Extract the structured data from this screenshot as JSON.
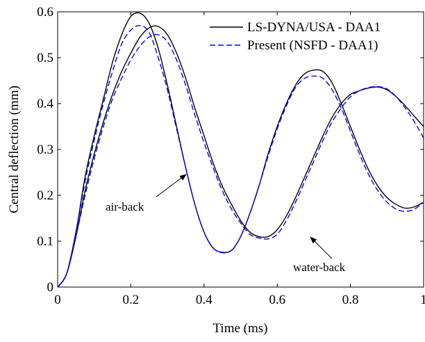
{
  "chart_data": {
    "type": "line",
    "xlabel": "Time (ms)",
    "ylabel": "Central deflection (mm)",
    "xlim": [
      0,
      1
    ],
    "xticks": [
      0,
      0.2,
      0.4,
      0.6,
      0.8,
      1
    ],
    "ylim": [
      0,
      0.6
    ],
    "yticks": [
      0,
      0.1,
      0.2,
      0.3,
      0.4,
      0.5,
      0.6
    ],
    "legend": "top-right",
    "annotations": [
      "air-back",
      "water-back"
    ],
    "x": [
      0,
      0.025,
      0.05,
      0.075,
      0.1,
      0.125,
      0.15,
      0.175,
      0.2,
      0.225,
      0.25,
      0.275,
      0.3,
      0.325,
      0.35,
      0.375,
      0.4,
      0.425,
      0.45,
      0.475,
      0.5,
      0.525,
      0.55,
      0.575,
      0.6,
      0.625,
      0.65,
      0.675,
      0.7,
      0.725,
      0.75,
      0.775,
      0.8,
      0.825,
      0.85,
      0.875,
      0.9,
      0.925,
      0.95,
      0.975,
      1
    ],
    "series": [
      {
        "name": "LS-DYNA/USA - DAA1",
        "color": "#000000",
        "dashed": false,
        "curves": [
          {
            "values": [
              0,
              0.03,
              0.12,
              0.24,
              0.33,
              0.41,
              0.49,
              0.55,
              0.59,
              0.597,
              0.575,
              0.52,
              0.44,
              0.35,
              0.26,
              0.18,
              0.12,
              0.085,
              0.076,
              0.08,
              0.11,
              0.16,
              0.22,
              0.29,
              0.35,
              0.4,
              0.44,
              0.465,
              0.473,
              0.47,
              0.445,
              0.4,
              0.35,
              0.3,
              0.255,
              0.22,
              0.195,
              0.18,
              0.172,
              0.175,
              0.185
            ]
          },
          {
            "values": [
              0,
              0.03,
              0.11,
              0.21,
              0.29,
              0.36,
              0.42,
              0.47,
              0.51,
              0.545,
              0.565,
              0.568,
              0.55,
              0.51,
              0.455,
              0.39,
              0.33,
              0.27,
              0.22,
              0.18,
              0.145,
              0.12,
              0.11,
              0.11,
              0.125,
              0.155,
              0.195,
              0.24,
              0.285,
              0.33,
              0.37,
              0.4,
              0.42,
              0.428,
              0.434,
              0.436,
              0.43,
              0.415,
              0.395,
              0.372,
              0.35
            ]
          }
        ]
      },
      {
        "name": "Present (NSFD - DAA1)",
        "color": "#0000ff",
        "dashed": true,
        "curves": [
          {
            "values": [
              0,
              0.03,
              0.12,
              0.23,
              0.32,
              0.4,
              0.47,
              0.53,
              0.56,
              0.57,
              0.555,
              0.5,
              0.43,
              0.345,
              0.26,
              0.18,
              0.12,
              0.085,
              0.075,
              0.08,
              0.11,
              0.16,
              0.22,
              0.285,
              0.345,
              0.395,
              0.435,
              0.455,
              0.46,
              0.455,
              0.43,
              0.39,
              0.34,
              0.29,
              0.245,
              0.21,
              0.185,
              0.17,
              0.165,
              0.17,
              0.185
            ]
          },
          {
            "values": [
              0,
              0.03,
              0.11,
              0.2,
              0.28,
              0.35,
              0.41,
              0.455,
              0.495,
              0.525,
              0.545,
              0.55,
              0.535,
              0.495,
              0.44,
              0.375,
              0.315,
              0.26,
              0.21,
              0.17,
              0.14,
              0.115,
              0.107,
              0.105,
              0.115,
              0.145,
              0.185,
              0.23,
              0.275,
              0.32,
              0.36,
              0.39,
              0.415,
              0.428,
              0.435,
              0.437,
              0.432,
              0.415,
              0.39,
              0.36,
              0.325
            ]
          }
        ]
      }
    ]
  }
}
